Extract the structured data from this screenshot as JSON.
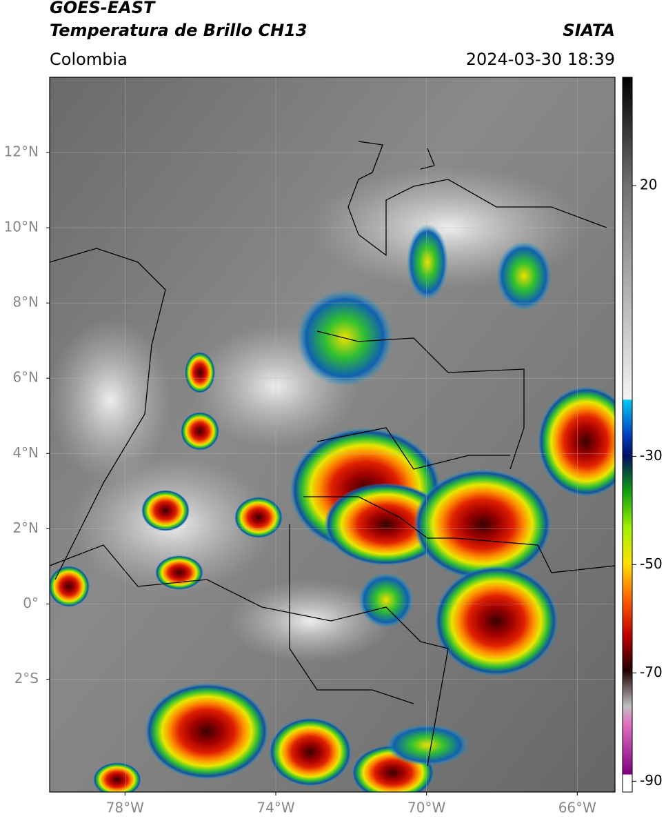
{
  "header": {
    "title": "GOES-EAST",
    "subtitle": "Temperatura de Brillo CH13",
    "region": "Colombia",
    "source": "SIATA",
    "datetime": "2024-03-30 18:39"
  },
  "map": {
    "xlim": [
      -80,
      -65
    ],
    "ylim": [
      -5,
      14
    ],
    "lon_ticks": [
      {
        "value": -78,
        "label": "78°W"
      },
      {
        "value": -74,
        "label": "74°W"
      },
      {
        "value": -70,
        "label": "70°W"
      },
      {
        "value": -66,
        "label": "66°W"
      }
    ],
    "lat_ticks": [
      {
        "value": 12,
        "label": "12°N"
      },
      {
        "value": 10,
        "label": "10°N"
      },
      {
        "value": 8,
        "label": "8°N"
      },
      {
        "value": 6,
        "label": "6°N"
      },
      {
        "value": 4,
        "label": "4°N"
      },
      {
        "value": 2,
        "label": "2°N"
      },
      {
        "value": 0,
        "label": "0°"
      },
      {
        "value": -2,
        "label": "2°S"
      }
    ]
  },
  "colorbar": {
    "lim": [
      -92,
      40
    ],
    "ticks": [
      20,
      -30,
      -50,
      -70,
      -90
    ]
  }
}
